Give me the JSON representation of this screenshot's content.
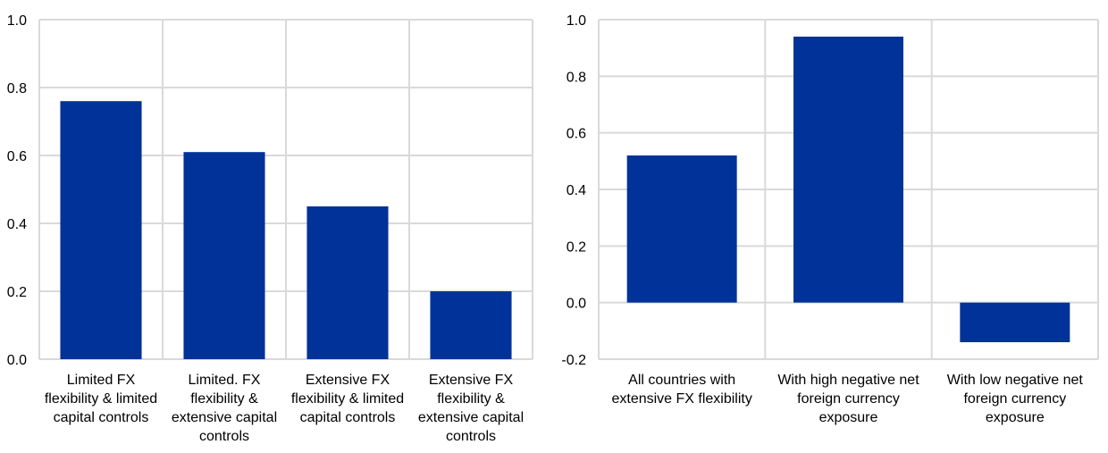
{
  "colors": {
    "bar": "#003299",
    "grid": "#d9d9d9"
  },
  "chart_data": [
    {
      "type": "bar",
      "categories": [
        [
          "Limited FX",
          "flexibility & limited",
          "capital controls"
        ],
        [
          "Limited. FX",
          "flexibility &",
          "extensive capital",
          "controls"
        ],
        [
          "Extensive FX",
          "flexibility & limited",
          "capital controls"
        ],
        [
          "Extensive FX",
          "flexibility &",
          "extensive capital",
          "controls"
        ]
      ],
      "values": [
        0.76,
        0.61,
        0.45,
        0.2
      ],
      "ylim": [
        0.0,
        1.0
      ],
      "yticks": [
        "0.0",
        "0.2",
        "0.4",
        "0.6",
        "0.8",
        "1.0"
      ],
      "grid": true
    },
    {
      "type": "bar",
      "categories": [
        [
          "All countries with",
          "extensive FX flexibility"
        ],
        [
          "With high negative net",
          "foreign currency",
          "exposure"
        ],
        [
          "With low negative net",
          "foreign currency",
          "exposure"
        ]
      ],
      "values": [
        0.52,
        0.94,
        -0.14
      ],
      "ylim": [
        -0.2,
        1.0
      ],
      "yticks": [
        "-0.2",
        "0.0",
        "0.2",
        "0.4",
        "0.6",
        "0.8",
        "1.0"
      ],
      "grid": true
    }
  ]
}
